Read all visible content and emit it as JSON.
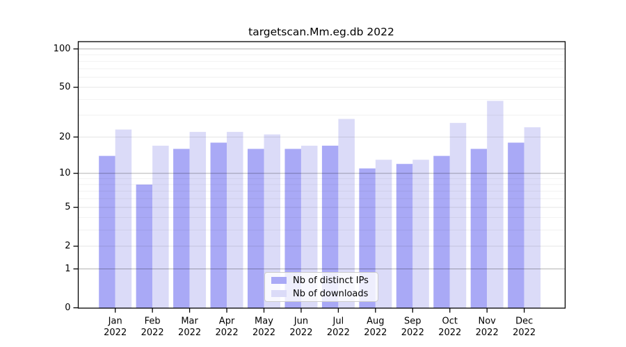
{
  "chart_data": {
    "type": "bar",
    "title": "targetscan.Mm.eg.db 2022",
    "categories": [
      "Jan 2022",
      "Feb 2022",
      "Mar 2022",
      "Apr 2022",
      "May 2022",
      "Jun 2022",
      "Jul 2022",
      "Aug 2022",
      "Sep 2022",
      "Oct 2022",
      "Nov 2022",
      "Dec 2022"
    ],
    "series": [
      {
        "name": "Nb of distinct IPs",
        "color": "#a9a9f6",
        "values": [
          14,
          8,
          16,
          18,
          16,
          16,
          17,
          11,
          12,
          14,
          16,
          18
        ]
      },
      {
        "name": "Nb of downloads",
        "color": "#dbdbf8",
        "values": [
          23,
          17,
          22,
          22,
          21,
          17,
          28,
          13,
          13,
          26,
          39,
          24
        ]
      }
    ],
    "yscale": "log1p",
    "ylim": [
      0,
      114
    ],
    "yticks": [
      0,
      1,
      2,
      5,
      10,
      20,
      50,
      100
    ],
    "gridlines": {
      "decade": [
        1,
        10,
        100
      ],
      "labeled": [
        2,
        5,
        20,
        50
      ],
      "minor": [
        3,
        4,
        6,
        7,
        8,
        9,
        30,
        40,
        60,
        70,
        80,
        90
      ]
    },
    "legend_position": "bottom-center",
    "grid": "on"
  },
  "colors": {
    "bar_distinct_ips": "#a9a9f6",
    "bar_downloads": "#dbdbf8",
    "grid_decade": "rgba(0,0,0,0.30)",
    "grid_labeled": "rgba(0,0,0,0.10)",
    "grid_minor": "rgba(0,0,0,0.055)",
    "axis": "#000000",
    "text": "#000000"
  }
}
